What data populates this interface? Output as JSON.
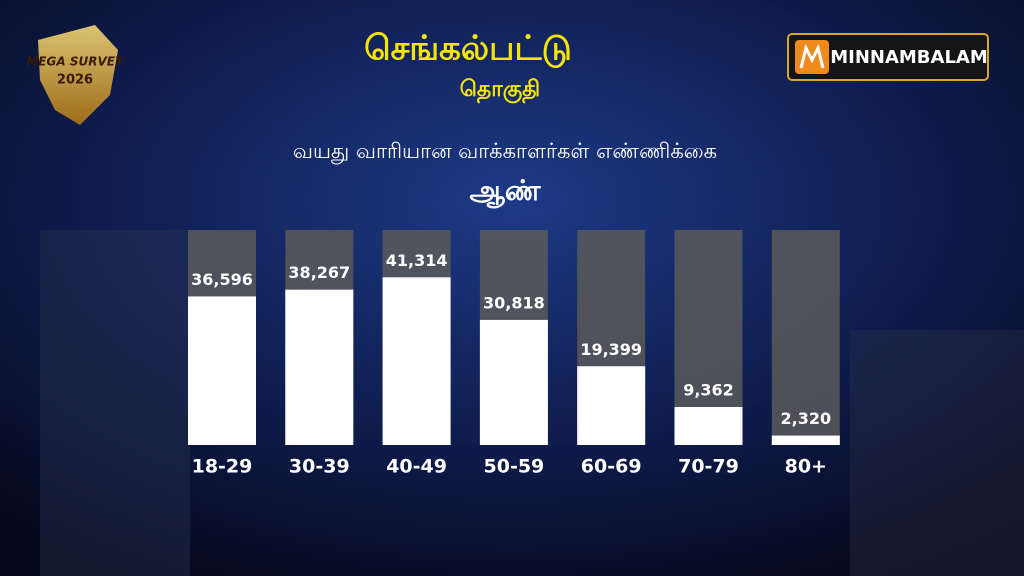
{
  "chart_data": {
    "type": "bar",
    "title": "செங்கல்பட்டு",
    "subtitle": "தொகுதி",
    "chart_title": "வயது வாரியான வாக்காளர்கள் எண்ணிக்கை",
    "group": "ஆண்",
    "categories": [
      "18-29",
      "30-39",
      "40-49",
      "50-59",
      "60-69",
      "70-79",
      "80+"
    ],
    "values": [
      36596,
      38267,
      41314,
      30818,
      19399,
      9362,
      2320
    ],
    "value_labels": [
      "36,596",
      "38,267",
      "41,314",
      "30,818",
      "19,399",
      "9,362",
      "2,320"
    ],
    "color": "#ffffff"
  },
  "logo": {
    "line1": "MEGA SURVEY",
    "line2": "2026"
  },
  "brand": "MINNAMBALAM"
}
